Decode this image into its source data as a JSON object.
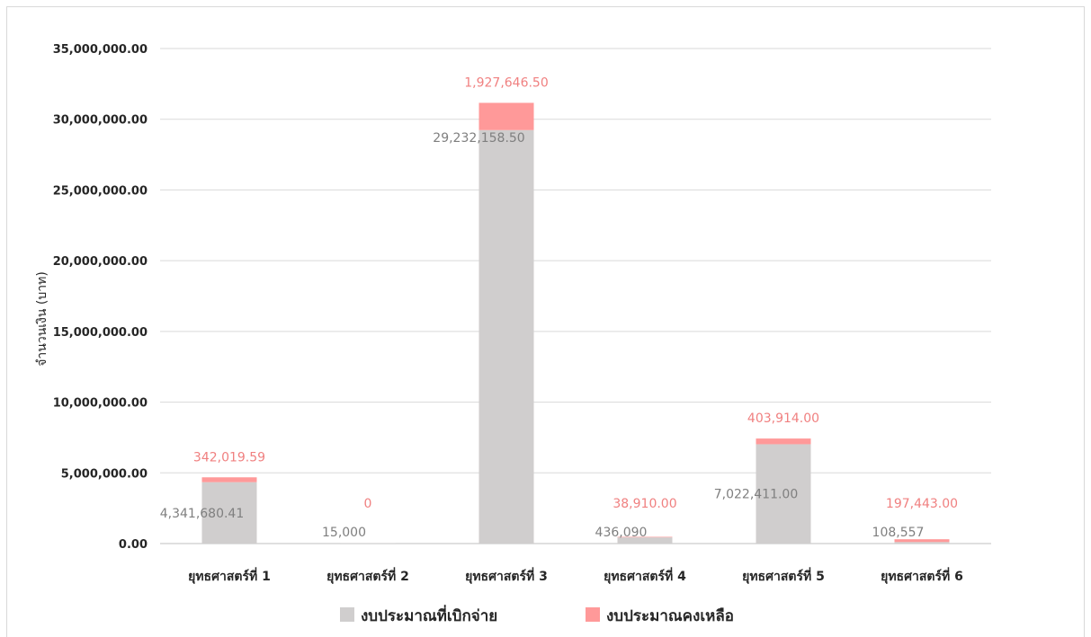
{
  "chart_data": {
    "type": "bar",
    "stacked": true,
    "title": "",
    "xlabel": "",
    "ylabel": "จำนวนเงิน (บาท)",
    "ylim": [
      0,
      35000000
    ],
    "yticks": [
      0,
      5000000,
      10000000,
      15000000,
      20000000,
      25000000,
      30000000,
      35000000
    ],
    "ytick_labels": [
      "0.00",
      "5,000,000.00",
      "10,000,000.00",
      "15,000,000.00",
      "20,000,000.00",
      "25,000,000.00",
      "30,000,000.00",
      "35,000,000.00"
    ],
    "grid": true,
    "legend_position": "bottom",
    "categories": [
      "ยุทธศาสตร์ที่ 1",
      "ยุทธศาสตร์ที่ 2",
      "ยุทธศาสตร์ที่ 3",
      "ยุทธศาสตร์ที่ 4",
      "ยุทธศาสตร์ที่ 5",
      "ยุทธศาสตร์ที่ 6"
    ],
    "series": [
      {
        "name": "งบประมาณที่เบิกจ่าย",
        "color": "#d0cece",
        "label_color": "#7f7f7f",
        "values": [
          4341680.41,
          15000,
          29232158.5,
          436090,
          7022411.0,
          108557
        ],
        "labels": [
          "4,341,680.41",
          "15,000",
          "29,232,158.50",
          "436,090",
          "7,022,411.00",
          "108,557"
        ]
      },
      {
        "name": "งบประมาณคงเหลือ",
        "color": "#ff9999",
        "label_color": "#f08080",
        "values": [
          342019.59,
          0,
          1927646.5,
          38910.0,
          403914.0,
          197443.0
        ],
        "labels": [
          "342,019.59",
          "0",
          "1,927,646.50",
          "38,910.00",
          "403,914.00",
          "197,443.00"
        ]
      }
    ]
  }
}
